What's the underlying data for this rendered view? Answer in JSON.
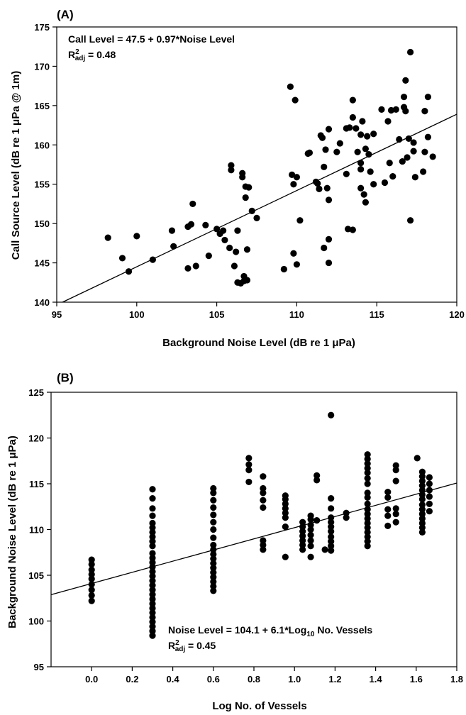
{
  "chart_data": [
    {
      "type": "scatter",
      "panel_label": "(A)",
      "xlabel": "Background Noise Level (dB re 1 μPa)",
      "ylabel": "Call Source Level (dB re 1 μPa @ 1m)",
      "xlim": [
        95,
        120
      ],
      "ylim": [
        140,
        175
      ],
      "xticks": [
        95,
        100,
        105,
        110,
        115,
        120
      ],
      "yticks": [
        140,
        145,
        150,
        155,
        160,
        165,
        170,
        175
      ],
      "xtick_labels": [
        "95",
        "100",
        "105",
        "110",
        "115",
        "120"
      ],
      "ytick_labels": [
        "140",
        "145",
        "150",
        "155",
        "160",
        "165",
        "170",
        "175"
      ],
      "annotation": {
        "equation": "Call Level = 47.5 + 0.97*Noise Level",
        "r2_prefix": "R",
        "r2_sup": "2",
        "r2_sub": "adj",
        "r2_value": " = 0.48"
      },
      "fit": {
        "intercept": 47.5,
        "slope": 0.97
      },
      "points": [
        [
          98.2,
          148.2
        ],
        [
          99.1,
          145.6
        ],
        [
          99.5,
          143.9
        ],
        [
          100,
          148.4
        ],
        [
          101,
          145.4
        ],
        [
          102.2,
          149.1
        ],
        [
          102.3,
          147.1
        ],
        [
          103.2,
          149.6
        ],
        [
          103.2,
          144.3
        ],
        [
          103.4,
          149.9
        ],
        [
          103.5,
          152.5
        ],
        [
          103.7,
          144.6
        ],
        [
          104.3,
          149.8
        ],
        [
          104.5,
          145.9
        ],
        [
          105,
          149.3
        ],
        [
          105.2,
          148.7
        ],
        [
          105.4,
          149.1
        ],
        [
          105.5,
          147.9
        ],
        [
          105.8,
          146.9
        ],
        [
          105.9,
          157.4
        ],
        [
          105.9,
          156.8
        ],
        [
          106.1,
          144.6
        ],
        [
          106.2,
          146.4
        ],
        [
          106.3,
          149.1
        ],
        [
          106.3,
          142.5
        ],
        [
          106.5,
          142.4
        ],
        [
          106.6,
          156.4
        ],
        [
          106.6,
          155.9
        ],
        [
          106.7,
          143.3
        ],
        [
          106.7,
          142.7
        ],
        [
          106.8,
          153.3
        ],
        [
          106.8,
          154.7
        ],
        [
          106.9,
          142.8
        ],
        [
          106.9,
          146.7
        ],
        [
          107,
          154.6
        ],
        [
          107.2,
          151.6
        ],
        [
          107.5,
          150.7
        ],
        [
          109.2,
          144.2
        ],
        [
          109.6,
          167.4
        ],
        [
          109.7,
          156.2
        ],
        [
          109.8,
          155
        ],
        [
          109.8,
          146.2
        ],
        [
          109.9,
          165.7
        ],
        [
          110,
          155.9
        ],
        [
          110,
          144.8
        ],
        [
          110.2,
          150.4
        ],
        [
          110.7,
          158.9
        ],
        [
          110.8,
          159
        ],
        [
          111.2,
          155.3
        ],
        [
          111.3,
          155.1
        ],
        [
          111.4,
          154.4
        ],
        [
          111.5,
          161.2
        ],
        [
          111.6,
          160.9
        ],
        [
          111.7,
          157.2
        ],
        [
          111.7,
          146.9
        ],
        [
          111.8,
          159.4
        ],
        [
          111.9,
          154.5
        ],
        [
          112,
          162
        ],
        [
          112,
          148
        ],
        [
          112,
          145
        ],
        [
          112,
          153
        ],
        [
          112.5,
          159.1
        ],
        [
          112.7,
          160.2
        ],
        [
          113.1,
          162.1
        ],
        [
          113.1,
          156.3
        ],
        [
          113.2,
          149.3
        ],
        [
          113.3,
          162.2
        ],
        [
          113.5,
          165.7
        ],
        [
          113.5,
          163.5
        ],
        [
          113.5,
          149.2
        ],
        [
          113.7,
          162.1
        ],
        [
          113.8,
          159.1
        ],
        [
          114,
          154.5
        ],
        [
          114,
          161.3
        ],
        [
          114,
          157.7
        ],
        [
          114,
          156.9
        ],
        [
          114.1,
          163
        ],
        [
          114.2,
          153.7
        ],
        [
          114.3,
          152.7
        ],
        [
          114.3,
          159.5
        ],
        [
          114.4,
          161.1
        ],
        [
          114.5,
          158.8
        ],
        [
          114.6,
          156.6
        ],
        [
          114.8,
          161.4
        ],
        [
          114.8,
          155
        ],
        [
          115.3,
          164.5
        ],
        [
          115.5,
          155.2
        ],
        [
          115.7,
          163
        ],
        [
          115.8,
          157.7
        ],
        [
          115.9,
          164.4
        ],
        [
          116,
          156
        ],
        [
          116.2,
          164.5
        ],
        [
          116.4,
          160.7
        ],
        [
          116.6,
          157.9
        ],
        [
          116.7,
          166.1
        ],
        [
          116.7,
          164.8
        ],
        [
          116.8,
          168.2
        ],
        [
          116.8,
          164.3
        ],
        [
          116.9,
          158.4
        ],
        [
          117,
          160.8
        ],
        [
          117.1,
          171.8
        ],
        [
          117.1,
          150.4
        ],
        [
          117.3,
          160.3
        ],
        [
          117.3,
          159.2
        ],
        [
          117.4,
          155.9
        ],
        [
          117.9,
          156.6
        ],
        [
          118,
          159.1
        ],
        [
          118,
          164.3
        ],
        [
          118.2,
          166.1
        ],
        [
          118.2,
          161
        ],
        [
          118.5,
          158.5
        ]
      ]
    },
    {
      "type": "scatter",
      "panel_label": "(B)",
      "xlabel": "Log No. of Vessels",
      "ylabel": "Background Noise Level (dB re 1 μPa)",
      "xlim": [
        -0.2,
        1.8
      ],
      "ylim": [
        95,
        125
      ],
      "xticks": [
        0,
        0.2,
        0.4,
        0.6,
        0.8,
        1.0,
        1.2,
        1.4,
        1.6,
        1.8
      ],
      "yticks": [
        95,
        100,
        105,
        110,
        115,
        120,
        125
      ],
      "xtick_labels": [
        "0.0",
        "0.2",
        "0.4",
        "0.6",
        "0.8",
        "1.0",
        "1.2",
        "1.4",
        "1.6",
        "1.8"
      ],
      "ytick_labels": [
        "95",
        "100",
        "105",
        "110",
        "115",
        "120",
        "125"
      ],
      "annotation": {
        "equation_prefix": "Noise Level = 104.1 + 6.1*Log",
        "equation_sub": "10",
        "equation_suffix": " No. Vessels",
        "r2_prefix": "R",
        "r2_sup": "2",
        "r2_sub": "adj",
        "r2_value": " = 0.45"
      },
      "fit": {
        "intercept": 104.1,
        "slope": 6.1
      },
      "columns": [
        {
          "x": 0.0,
          "y": [
            102.2,
            102.8,
            103.4,
            104,
            104.6,
            105.1,
            105.6,
            106.2,
            106.7
          ]
        },
        {
          "x": 0.3,
          "y": [
            98.4,
            98.9,
            99.4,
            99.9,
            100.4,
            100.9,
            101.4,
            101.9,
            102.4,
            102.9,
            103.4,
            103.9,
            104.4,
            104.9,
            105.4,
            105.9,
            106.4,
            106.9,
            107.4,
            108.2,
            108.7,
            109.2,
            109.7,
            110.2,
            110.7,
            111.5,
            112.3,
            113.4,
            114.4
          ]
        },
        {
          "x": 0.6,
          "y": [
            103.3,
            103.8,
            104.3,
            104.8,
            105.3,
            105.8,
            106.3,
            106.8,
            107.3,
            107.8,
            108.3,
            109.1,
            110,
            110.8,
            111.6,
            112.4,
            113.2,
            114,
            114.5
          ]
        },
        {
          "x": 0.775,
          "y": [
            115.2,
            116.5,
            117.1,
            117.8
          ]
        },
        {
          "x": 0.845,
          "y": [
            107.8,
            108.3,
            108.8,
            112.4,
            113.2,
            114,
            114.5,
            115.8
          ]
        },
        {
          "x": 0.955,
          "y": [
            107,
            110.3,
            111.3,
            111.8,
            112.3,
            112.8,
            113.3,
            113.7
          ]
        },
        {
          "x": 1.04,
          "y": [
            107.8,
            108.3,
            108.8,
            109.3,
            109.8,
            110.3,
            110.8
          ]
        },
        {
          "x": 1.08,
          "y": [
            107,
            108.2,
            108.8,
            109.4,
            110,
            110.5,
            111.1,
            111.5
          ]
        },
        {
          "x": 1.11,
          "y": [
            115.9,
            115.4,
            111
          ]
        },
        {
          "x": 1.15,
          "y": [
            107.8
          ]
        },
        {
          "x": 1.18,
          "y": [
            107.7,
            108.2,
            108.7,
            109.2,
            109.8,
            110.3,
            110.8,
            111.3,
            112.3,
            113.4,
            122.5
          ]
        },
        {
          "x": 1.255,
          "y": [
            111.3,
            111.8
          ]
        },
        {
          "x": 1.36,
          "y": [
            108.2,
            108.7,
            109.2,
            109.7,
            110.2,
            110.7,
            111.2,
            111.7,
            112.2,
            112.8,
            113.5,
            114,
            115,
            115.6,
            116.2,
            116.7,
            117.2,
            117.7,
            118.2
          ]
        },
        {
          "x": 1.46,
          "y": [
            110.4,
            111.5,
            112.2,
            113.5,
            114.1
          ]
        },
        {
          "x": 1.5,
          "y": [
            110.8,
            111.7,
            112.3,
            115.3,
            116.5,
            117
          ]
        },
        {
          "x": 1.605,
          "y": [
            117.8
          ]
        },
        {
          "x": 1.63,
          "y": [
            109.7,
            110.2,
            110.7,
            111.2,
            111.7,
            112.2,
            112.7,
            113.3,
            113.8,
            114.3,
            114.8,
            115.3,
            115.8,
            116.3
          ]
        },
        {
          "x": 1.665,
          "y": [
            112,
            112.8,
            113.6,
            114.3,
            115,
            115.7
          ]
        }
      ]
    }
  ]
}
